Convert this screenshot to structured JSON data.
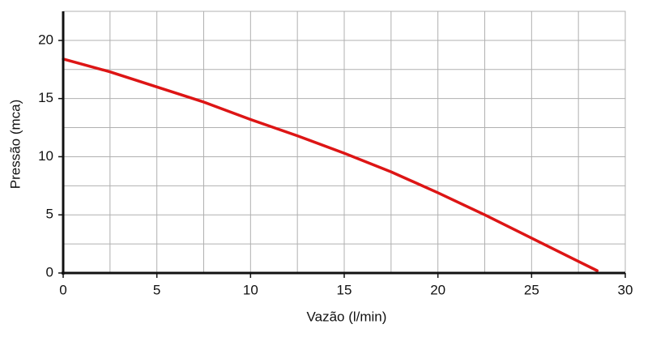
{
  "chart_data": {
    "type": "line",
    "x_label": "Vazão  (l/min)",
    "y_label": "Pressão (mca)",
    "x": [
      0,
      2.5,
      5,
      7.5,
      10,
      12.5,
      15,
      17.5,
      20,
      22.5,
      25,
      27.5,
      28.5
    ],
    "series": [
      {
        "name": "curve",
        "color": "#dd1515",
        "values": [
          18.4,
          17.3,
          16.0,
          14.7,
          13.2,
          11.8,
          10.3,
          8.7,
          6.9,
          5.0,
          3.0,
          1.0,
          0.2
        ]
      }
    ],
    "xlim": [
      0,
      30
    ],
    "ylim": [
      0,
      22.5
    ],
    "xticks": [
      0,
      5,
      10,
      15,
      20,
      25,
      30
    ],
    "yticks": [
      0,
      5,
      10,
      15,
      20
    ],
    "x_minor_ticks": [
      2.5,
      7.5,
      12.5,
      17.5,
      22.5,
      27.5
    ],
    "y_minor_ticks": [
      2.5,
      7.5,
      12.5,
      17.5,
      22.5
    ],
    "grid": true
  }
}
